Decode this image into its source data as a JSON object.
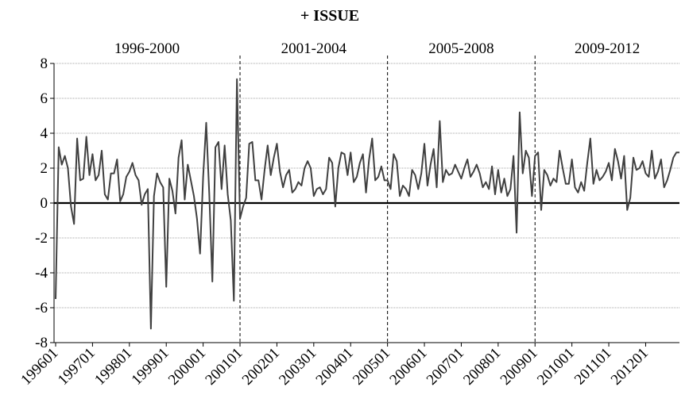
{
  "chart_data": {
    "type": "line",
    "title": "+ ISSUE",
    "periods": [
      "1996-2000",
      "2001-2004",
      "2005-2008",
      "2009-2012"
    ],
    "categories": [
      "199601",
      null,
      null,
      null,
      null,
      null,
      null,
      null,
      null,
      null,
      null,
      null,
      "199701",
      null,
      null,
      null,
      null,
      null,
      null,
      null,
      null,
      null,
      null,
      null,
      "199801",
      null,
      null,
      null,
      null,
      null,
      null,
      null,
      null,
      null,
      null,
      null,
      "199901",
      null,
      null,
      null,
      null,
      null,
      null,
      null,
      null,
      null,
      null,
      null,
      "200001",
      null,
      null,
      null,
      null,
      null,
      null,
      null,
      null,
      null,
      null,
      null,
      "200101",
      null,
      null,
      null,
      null,
      null,
      null,
      null,
      null,
      null,
      null,
      null,
      "200201",
      null,
      null,
      null,
      null,
      null,
      null,
      null,
      null,
      null,
      null,
      null,
      "200301",
      null,
      null,
      null,
      null,
      null,
      null,
      null,
      null,
      null,
      null,
      null,
      "200401",
      null,
      null,
      null,
      null,
      null,
      null,
      null,
      null,
      null,
      null,
      null,
      "200501",
      null,
      null,
      null,
      null,
      null,
      null,
      null,
      null,
      null,
      null,
      null,
      "200601",
      null,
      null,
      null,
      null,
      null,
      null,
      null,
      null,
      null,
      null,
      null,
      "200701",
      null,
      null,
      null,
      null,
      null,
      null,
      null,
      null,
      null,
      null,
      null,
      "200801",
      null,
      null,
      null,
      null,
      null,
      null,
      null,
      null,
      null,
      null,
      null,
      "200901",
      null,
      null,
      null,
      null,
      null,
      null,
      null,
      null,
      null,
      null,
      null,
      "201001",
      null,
      null,
      null,
      null,
      null,
      null,
      null,
      null,
      null,
      null,
      null,
      "201101",
      null,
      null,
      null,
      null,
      null,
      null,
      null,
      null,
      null,
      null,
      null,
      "201201",
      null,
      null,
      null,
      null,
      null,
      null,
      null,
      null,
      null,
      null,
      null
    ],
    "series": [
      {
        "color": "#404040",
        "values": [
          -5.5,
          3.2,
          2.2,
          2.7,
          2.0,
          -0.2,
          -1.2,
          3.7,
          1.3,
          1.4,
          3.8,
          1.6,
          2.8,
          1.3,
          1.6,
          3.0,
          0.5,
          0.2,
          1.7,
          1.7,
          2.5,
          0.1,
          0.5,
          1.5,
          1.8,
          2.3,
          1.6,
          1.3,
          -0.1,
          0.5,
          0.8,
          -7.2,
          0.4,
          1.7,
          1.2,
          0.9,
          -4.8,
          1.4,
          0.7,
          -0.6,
          2.6,
          3.6,
          0.2,
          2.2,
          1.3,
          0.4,
          -0.9,
          -2.9,
          1.5,
          4.6,
          0.5,
          -4.5,
          3.2,
          3.5,
          0.8,
          3.3,
          0.5,
          -1.0,
          -5.6,
          7.1,
          -0.9,
          -0.2,
          0.3,
          3.4,
          3.5,
          1.3,
          1.3,
          0.2,
          1.9,
          3.3,
          1.6,
          2.6,
          3.4,
          1.8,
          0.9,
          1.6,
          1.9,
          0.6,
          0.8,
          1.2,
          1.0,
          2.0,
          2.4,
          2.0,
          0.4,
          0.8,
          0.9,
          0.5,
          0.8,
          2.6,
          2.3,
          -0.2,
          2.0,
          2.9,
          2.8,
          1.6,
          2.9,
          1.2,
          1.5,
          2.3,
          2.8,
          0.6,
          2.5,
          3.7,
          1.3,
          1.5,
          2.1,
          1.3,
          1.3,
          0.8,
          2.8,
          2.4,
          0.4,
          1.0,
          0.8,
          0.4,
          1.9,
          1.6,
          0.8,
          1.7,
          3.4,
          1.0,
          2.2,
          3.1,
          0.9,
          4.7,
          1.2,
          1.9,
          1.6,
          1.7,
          2.2,
          1.8,
          1.4,
          2.0,
          2.5,
          1.5,
          1.8,
          2.2,
          1.7,
          0.9,
          1.2,
          0.8,
          2.1,
          0.5,
          1.9,
          0.6,
          1.4,
          0.4,
          0.8,
          2.7,
          -1.7,
          5.2,
          1.7,
          3.0,
          2.6,
          0.4,
          2.7,
          2.9,
          -0.4,
          1.9,
          1.6,
          1.0,
          1.4,
          1.2,
          3.0,
          2.0,
          1.1,
          1.1,
          2.5,
          0.9,
          0.6,
          1.2,
          0.7,
          2.3,
          3.7,
          1.1,
          1.9,
          1.3,
          1.5,
          1.8,
          2.3,
          1.3,
          3.1,
          2.4,
          1.4,
          2.7,
          -0.4,
          0.3,
          2.6,
          1.9,
          2.0,
          2.4,
          1.7,
          1.5,
          3.0,
          1.4,
          1.8,
          2.5,
          0.9,
          1.3,
          1.9,
          2.6,
          2.9,
          2.9
        ]
      }
    ],
    "ylim": [
      -8,
      8
    ],
    "yticks": [
      -8,
      -6,
      -4,
      -2,
      0,
      2,
      4,
      6,
      8
    ],
    "grid": true
  }
}
